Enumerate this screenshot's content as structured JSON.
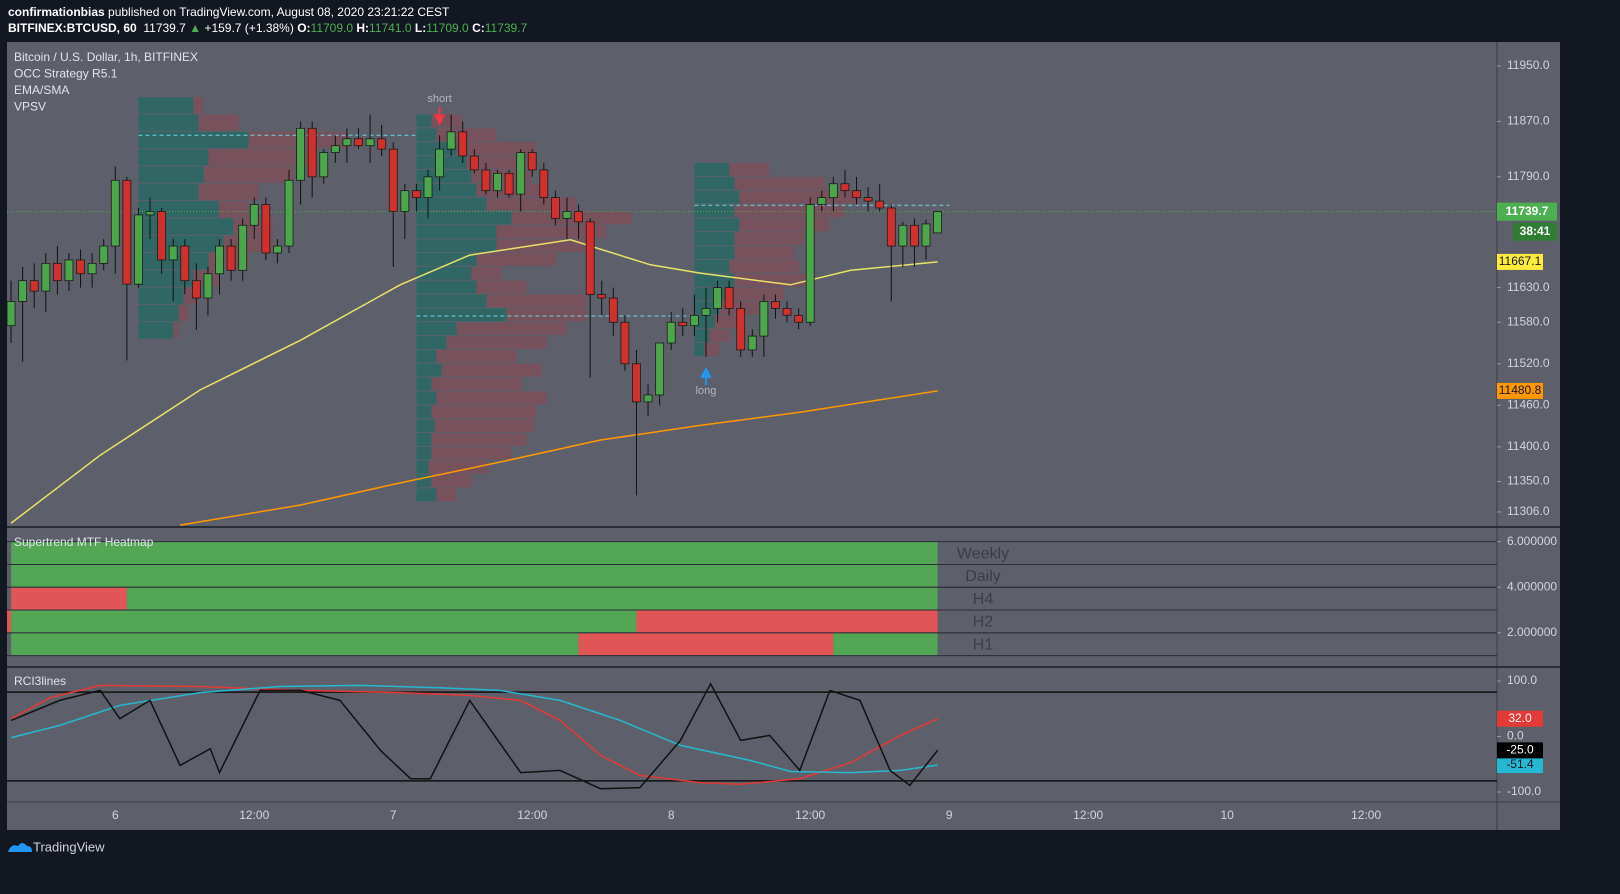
{
  "header": {
    "author": "confirmationbias",
    "published": "published on TradingView.com, August 08, 2020 23:21:22 CEST",
    "symbol": "BITFINEX:BTCUSD, 60",
    "last": "11739.7",
    "arrow": "▲",
    "change": "+159.7 (+1.38%)",
    "ohlc": [
      {
        "label": "O:",
        "value": "11709.0"
      },
      {
        "label": "H:",
        "value": "11741.0"
      },
      {
        "label": "L:",
        "value": "11709.0"
      },
      {
        "label": "C:",
        "value": "11739.7"
      }
    ],
    "brand": "TradingView"
  },
  "chart_data": [
    {
      "type": "candlestick",
      "legend": [
        "Bitcoin / U.S. Dollar, 1h, BITFINEX",
        "OCC Strategy R5.1",
        "EMA/SMA",
        "VPSV"
      ],
      "xlim": [
        -0.35,
        128.3
      ],
      "ylim": [
        11284.3,
        11984.7
      ],
      "yticks": [
        {
          "value": 11950,
          "label": "11950.0"
        },
        {
          "value": 11870,
          "label": "11870.0"
        },
        {
          "value": 11790,
          "label": "11790.0"
        },
        {
          "value": 11630,
          "label": "11630.0"
        },
        {
          "value": 11580,
          "label": "11580.0"
        },
        {
          "value": 11520,
          "label": "11520.0"
        },
        {
          "value": 11460,
          "label": "11460.0"
        },
        {
          "value": 11400,
          "label": "11400.0"
        },
        {
          "value": 11350,
          "label": "11350.0"
        },
        {
          "value": 11306,
          "label": "11306.0"
        }
      ],
      "up_color": "#4ca64c",
      "down_color": "#d0312d",
      "x": [
        0,
        1,
        2,
        3,
        4,
        5,
        6,
        7,
        8,
        9,
        10,
        11,
        12,
        13,
        14,
        15,
        16,
        17,
        18,
        19,
        20,
        21,
        22,
        23,
        24,
        25,
        26,
        27,
        28,
        29,
        30,
        31,
        32,
        33,
        34,
        35,
        36,
        37,
        38,
        39,
        40,
        41,
        42,
        43,
        44,
        45,
        46,
        47,
        48,
        49,
        50,
        51,
        52,
        53,
        54,
        55,
        56,
        57,
        58,
        59,
        60,
        61,
        62,
        63,
        64,
        65,
        66,
        67,
        68,
        69,
        70,
        71,
        72,
        73,
        74,
        75,
        76,
        77,
        78,
        79,
        80
      ],
      "open": [
        11575,
        11610,
        11640,
        11625,
        11665,
        11640,
        11670,
        11650,
        11665,
        11690,
        11785,
        11635,
        11735,
        11740,
        11670,
        11690,
        11640,
        11615,
        11650,
        11690,
        11655,
        11720,
        11750,
        11680,
        11690,
        11785,
        11860,
        11790,
        11825,
        11835,
        11845,
        11835,
        11845,
        11830,
        11740,
        11770,
        11760,
        11790,
        11830,
        11855,
        11820,
        11800,
        11770,
        11795,
        11765,
        11825,
        11800,
        11760,
        11730,
        11740,
        11725,
        11620,
        11615,
        11580,
        11520,
        11465,
        11475,
        11550,
        11580,
        11575,
        11590,
        11600,
        11630,
        11600,
        11540,
        11560,
        11610,
        11600,
        11590,
        11580,
        11750,
        11760,
        11780,
        11770,
        11760,
        11755,
        11745,
        11690,
        11720,
        11690,
        11709
      ],
      "high": [
        11640,
        11660,
        11665,
        11680,
        11690,
        11680,
        11685,
        11680,
        11700,
        11805,
        11790,
        11745,
        11760,
        11745,
        11700,
        11700,
        11665,
        11660,
        11700,
        11700,
        11730,
        11760,
        11760,
        11700,
        11800,
        11870,
        11870,
        11830,
        11850,
        11860,
        11860,
        11880,
        11865,
        11840,
        11780,
        11780,
        11800,
        11850,
        11880,
        11870,
        11830,
        11810,
        11800,
        11800,
        11830,
        11830,
        11810,
        11770,
        11760,
        11750,
        11730,
        11640,
        11630,
        11590,
        11540,
        11490,
        11550,
        11595,
        11600,
        11620,
        11630,
        11640,
        11640,
        11610,
        11570,
        11620,
        11620,
        11610,
        11600,
        11760,
        11770,
        11790,
        11800,
        11790,
        11775,
        11780,
        11750,
        11725,
        11730,
        11728,
        11741
      ],
      "low": [
        11550,
        11523,
        11600,
        11595,
        11620,
        11625,
        11630,
        11630,
        11655,
        11650,
        11525,
        11630,
        11700,
        11650,
        11610,
        11620,
        11569,
        11590,
        11620,
        11640,
        11640,
        11700,
        11670,
        11665,
        11680,
        11750,
        11760,
        11780,
        11810,
        11810,
        11830,
        11810,
        11820,
        11660,
        11700,
        11740,
        11730,
        11770,
        11820,
        11810,
        11795,
        11765,
        11760,
        11760,
        11740,
        11790,
        11750,
        11720,
        11700,
        11700,
        11500,
        11590,
        11560,
        11510,
        11330,
        11445,
        11460,
        11540,
        11560,
        11560,
        11530,
        11580,
        11590,
        11530,
        11530,
        11530,
        11585,
        11580,
        11570,
        11575,
        11740,
        11740,
        11760,
        11750,
        11740,
        11740,
        11610,
        11660,
        11660,
        11670,
        11709
      ],
      "close": [
        11610,
        11640,
        11625,
        11665,
        11640,
        11670,
        11650,
        11665,
        11690,
        11785,
        11635,
        11735,
        11740,
        11670,
        11690,
        11640,
        11615,
        11650,
        11690,
        11655,
        11720,
        11750,
        11680,
        11690,
        11785,
        11860,
        11790,
        11825,
        11835,
        11845,
        11835,
        11845,
        11830,
        11740,
        11770,
        11760,
        11790,
        11830,
        11855,
        11820,
        11800,
        11770,
        11795,
        11765,
        11825,
        11800,
        11760,
        11730,
        11740,
        11725,
        11620,
        11615,
        11580,
        11520,
        11465,
        11475,
        11550,
        11580,
        11575,
        11590,
        11600,
        11630,
        11600,
        11540,
        11560,
        11610,
        11600,
        11590,
        11580,
        11750,
        11760,
        11780,
        11770,
        11760,
        11755,
        11745,
        11690,
        11720,
        11690,
        11722,
        11739.7
      ],
      "last_price_label": "11739.7",
      "last_price_color": "#4caf50",
      "countdown": "38:41",
      "series": [
        {
          "name": "EMA",
          "color": "#e8e26a",
          "label": "11667.1",
          "label_bg": "#ffeb3b",
          "x": [
            0,
            7.7,
            16.3,
            25,
            33.6,
            39.6,
            48.3,
            55.2,
            59.5,
            67.3,
            72.5,
            80
          ],
          "values": [
            11290,
            11388,
            11482,
            11554,
            11634,
            11677,
            11699,
            11663,
            11651,
            11634,
            11655,
            11667.1
          ]
        },
        {
          "name": "SMA",
          "color": "#ff9800",
          "label": "11480.8",
          "label_bg": "#ff9800",
          "x": [
            14.6,
            25,
            33.6,
            42.2,
            50.9,
            59.5,
            68.1,
            80
          ],
          "values": [
            11287,
            11316,
            11348,
            11378,
            11410,
            11431,
            11450,
            11480.8
          ]
        }
      ],
      "signals": [
        {
          "label": "short",
          "x": 37,
          "side": "sell",
          "color": "#f23645"
        },
        {
          "label": "long",
          "x": 60,
          "side": "buy",
          "color": "#2196f3"
        }
      ],
      "profiles": [
        {
          "start": 11,
          "end": 35,
          "poc": 11850,
          "prices": [
            11555,
            11580,
            11605,
            11630,
            11655,
            11680,
            11705,
            11730,
            11755,
            11780,
            11805,
            11830,
            11855,
            11880
          ],
          "up": [
            35,
            40,
            45,
            55,
            70,
            85,
            95,
            80,
            60,
            65,
            70,
            110,
            60,
            55
          ],
          "down": [
            5,
            10,
            15,
            25,
            40,
            50,
            40,
            30,
            60,
            90,
            100,
            100,
            40,
            10
          ]
        },
        {
          "start": 35,
          "end": 59,
          "poc": 11589,
          "prices": [
            11320,
            11340,
            11360,
            11380,
            11400,
            11420,
            11440,
            11460,
            11480,
            11500,
            11520,
            11540,
            11560,
            11580,
            11600,
            11620,
            11640,
            11660,
            11680,
            11700,
            11720,
            11740,
            11760,
            11780,
            11800,
            11820,
            11840,
            11860
          ],
          "up": [
            20,
            15,
            12,
            15,
            15,
            18,
            15,
            20,
            15,
            25,
            20,
            30,
            40,
            90,
            70,
            60,
            55,
            60,
            80,
            80,
            95,
            70,
            60,
            55,
            50,
            40,
            20,
            15
          ],
          "down": [
            20,
            40,
            60,
            80,
            95,
            100,
            105,
            110,
            90,
            100,
            80,
            100,
            110,
            80,
            100,
            50,
            30,
            80,
            100,
            110,
            120,
            90,
            70,
            60,
            60,
            80,
            60,
            30
          ]
        },
        {
          "start": 59,
          "end": 81,
          "poc": 11749,
          "prices": [
            11530,
            11550,
            11570,
            11590,
            11610,
            11630,
            11650,
            11670,
            11690,
            11710,
            11730,
            11750,
            11770,
            11790
          ],
          "up": [
            10,
            15,
            20,
            25,
            30,
            40,
            35,
            40,
            40,
            45,
            40,
            45,
            40,
            35
          ],
          "down": [
            15,
            20,
            25,
            40,
            60,
            80,
            70,
            60,
            70,
            90,
            110,
            120,
            90,
            40
          ]
        }
      ]
    },
    {
      "type": "heatmap",
      "title": "Supertrend MTF Heatmap",
      "xlim": [
        -0.35,
        128.3
      ],
      "ylim": [
        0.5,
        6.6
      ],
      "yticks": [
        {
          "value": 6,
          "label": "6.000000"
        },
        {
          "value": 4,
          "label": "4.000000"
        },
        {
          "value": 2,
          "label": "2.000000"
        }
      ],
      "rows": [
        {
          "name": "Weekly",
          "level": 5,
          "segments": [
            {
              "start": 0,
              "end": 80,
              "color": "#53a653"
            }
          ]
        },
        {
          "name": "Daily",
          "level": 4,
          "segments": [
            {
              "start": 0,
              "end": 80,
              "color": "#53a653"
            }
          ]
        },
        {
          "name": "H4",
          "level": 3,
          "segments": [
            {
              "start": 0,
              "end": 10,
              "color": "#e05555"
            },
            {
              "start": 10,
              "end": 80,
              "color": "#53a653"
            }
          ]
        },
        {
          "name": "H2",
          "level": 2,
          "segments": [
            {
              "start": -0.35,
              "end": 0,
              "color": "#e05555"
            },
            {
              "start": 0,
              "end": 54,
              "color": "#53a653"
            },
            {
              "start": 54,
              "end": 80,
              "color": "#e05555"
            }
          ]
        },
        {
          "name": "H1",
          "level": 1,
          "segments": [
            {
              "start": 0,
              "end": 49,
              "color": "#53a653"
            },
            {
              "start": 49,
              "end": 71,
              "color": "#e05555"
            },
            {
              "start": 71,
              "end": 80,
              "color": "#53a653"
            }
          ]
        }
      ]
    },
    {
      "type": "line",
      "title": "RCI3lines",
      "xlim": [
        -0.35,
        128.3
      ],
      "ylim": [
        -118,
        123.4
      ],
      "yticks": [
        {
          "value": 100,
          "label": "100.0"
        },
        {
          "value": 0,
          "label": "0.0"
        },
        {
          "value": -100,
          "label": "-100.0"
        }
      ],
      "levels": [
        80,
        -80
      ],
      "xticks": [
        {
          "value": 9,
          "label": "6"
        },
        {
          "value": 21,
          "label": "12:00"
        },
        {
          "value": 33,
          "label": "7"
        },
        {
          "value": 45,
          "label": "12:00"
        },
        {
          "value": 57,
          "label": "8"
        },
        {
          "value": 69,
          "label": "12:00"
        },
        {
          "value": 81,
          "label": "9"
        },
        {
          "value": 93,
          "label": "12:00"
        },
        {
          "value": 105,
          "label": "10"
        },
        {
          "value": 117,
          "label": "12:00"
        }
      ],
      "series": [
        {
          "name": "short",
          "color": "#e53935",
          "label": "32.0",
          "label_bg": "#e53935",
          "label_fg": "#ffffff",
          "x": [
            0,
            3.4,
            7.7,
            16.3,
            25,
            33.6,
            39.6,
            44,
            47.4,
            50.9,
            54.3,
            59.5,
            63,
            68.1,
            72.5,
            76.8,
            80
          ],
          "values": [
            32,
            70,
            92,
            90,
            83,
            79,
            74,
            65,
            29,
            -34,
            -70,
            -83,
            -86,
            -76,
            -47,
            2,
            32
          ]
        },
        {
          "name": "middle",
          "color": "#26b8d0",
          "label": "-51.4",
          "label_bg": "#26b8d0",
          "label_fg": "#131722",
          "x": [
            0,
            4.2,
            9.4,
            16.3,
            23.2,
            30.1,
            37,
            42.2,
            47.4,
            52.6,
            57.8,
            63.8,
            67.3,
            72.5,
            76.8,
            80
          ],
          "values": [
            -2,
            20,
            56,
            79,
            90,
            92,
            88,
            83,
            65,
            29,
            -16,
            -43,
            -63,
            -65,
            -61,
            -51.4
          ]
        },
        {
          "name": "long",
          "color": "#111111",
          "label": "-25.0",
          "label_bg": "#000000",
          "label_fg": "#ffffff",
          "x": [
            0,
            4.2,
            7.7,
            9.4,
            12,
            14.6,
            17.2,
            18,
            21.5,
            25,
            28.4,
            31.9,
            34.5,
            36.2,
            39.6,
            44,
            47.4,
            50.9,
            54.3,
            57.8,
            60.4,
            63,
            65.5,
            68.1,
            70.7,
            73.3,
            75.9,
            77.6,
            80
          ],
          "values": [
            29,
            65,
            83,
            32,
            65,
            -52,
            -22,
            -65,
            83,
            83,
            65,
            -25,
            -76,
            -76,
            65,
            -65,
            -61,
            -94,
            -92,
            -7,
            95,
            -7,
            2,
            -61,
            83,
            65,
            -61,
            -88,
            -25
          ]
        }
      ]
    }
  ]
}
